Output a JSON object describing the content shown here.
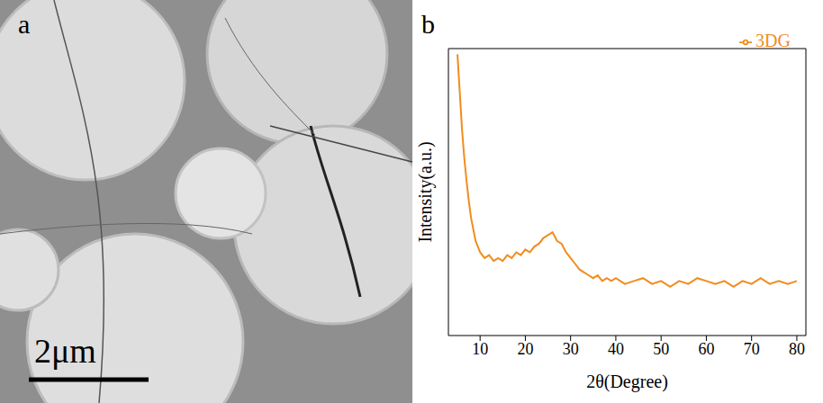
{
  "image_panel": {
    "label": "a",
    "scale_bar": "2μm"
  },
  "chart_panel": {
    "label": "b"
  },
  "chart_data": {
    "type": "line",
    "x_label": "2θ(Degree)",
    "y_label": "Intensity(a.u.)",
    "x": [
      5,
      5.5,
      6,
      6.5,
      7,
      7.5,
      8,
      8.5,
      9,
      9.5,
      10,
      11,
      12,
      13,
      14,
      15,
      16,
      17,
      18,
      19,
      20,
      21,
      22,
      23,
      24,
      25,
      26,
      27,
      28,
      29,
      30,
      31,
      32,
      33,
      34,
      35,
      36,
      37,
      38,
      39,
      40,
      42,
      44,
      46,
      48,
      50,
      52,
      54,
      56,
      58,
      60,
      62,
      64,
      66,
      68,
      70,
      72,
      74,
      76,
      78,
      80
    ],
    "series": [
      {
        "name": "3DG",
        "color": "#f28c1e",
        "values": [
          98,
          85,
          72,
          62,
          54,
          47,
          41,
          37,
          33,
          31,
          29,
          27,
          28,
          26,
          27,
          26,
          28,
          27,
          29,
          28,
          30,
          29,
          31,
          32,
          34,
          35,
          36,
          33,
          32,
          29,
          27,
          25,
          23,
          22,
          21,
          20,
          21,
          19,
          20,
          19,
          20,
          18,
          19,
          20,
          18,
          19,
          17,
          19,
          18,
          20,
          19,
          18,
          19,
          17,
          19,
          18,
          20,
          18,
          19,
          18,
          19
        ]
      }
    ],
    "xlim": [
      3,
      82
    ],
    "xticks": [
      10,
      20,
      30,
      40,
      50,
      60,
      70,
      80
    ],
    "ylim": [
      0,
      100
    ],
    "tick_labels": "x",
    "legend": "upper right"
  }
}
